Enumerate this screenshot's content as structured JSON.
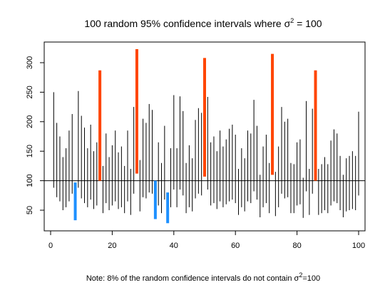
{
  "chart_data": {
    "type": "interval",
    "title": {
      "before": "100 random 95% confidence intervals where σ",
      "sup": "2",
      "after": " = 100"
    },
    "note": {
      "before": "Note: 8% of the random confidence intervals do not contain σ",
      "sup": "2",
      "after": "=100"
    },
    "xlabel": "",
    "ylabel": "",
    "xlim": [
      0,
      100
    ],
    "ylim": [
      15,
      335
    ],
    "x_ticks": [
      0,
      20,
      40,
      60,
      80,
      100
    ],
    "y_ticks": [
      50,
      100,
      150,
      200,
      250,
      300
    ],
    "reference_line": 100,
    "colors": {
      "contains": "#000000",
      "above": "#ff4500",
      "below": "#1e90ff"
    },
    "intervals": [
      {
        "x": 1,
        "low": 88,
        "high": 250
      },
      {
        "x": 2,
        "low": 72,
        "high": 198
      },
      {
        "x": 3,
        "low": 65,
        "high": 175
      },
      {
        "x": 4,
        "low": 50,
        "high": 140
      },
      {
        "x": 5,
        "low": 55,
        "high": 155
      },
      {
        "x": 6,
        "low": 65,
        "high": 185
      },
      {
        "x": 7,
        "low": 78,
        "high": 213
      },
      {
        "x": 8,
        "low": 33,
        "high": 97
      },
      {
        "x": 9,
        "low": 88,
        "high": 252
      },
      {
        "x": 10,
        "low": 70,
        "high": 210
      },
      {
        "x": 11,
        "low": 62,
        "high": 190
      },
      {
        "x": 12,
        "low": 55,
        "high": 155
      },
      {
        "x": 13,
        "low": 68,
        "high": 195
      },
      {
        "x": 14,
        "low": 52,
        "high": 150
      },
      {
        "x": 15,
        "low": 58,
        "high": 165
      },
      {
        "x": 16,
        "low": 100,
        "high": 287
      },
      {
        "x": 17,
        "low": 45,
        "high": 125
      },
      {
        "x": 18,
        "low": 62,
        "high": 180
      },
      {
        "x": 19,
        "low": 50,
        "high": 140
      },
      {
        "x": 20,
        "low": 58,
        "high": 160
      },
      {
        "x": 21,
        "low": 65,
        "high": 185
      },
      {
        "x": 22,
        "low": 52,
        "high": 148
      },
      {
        "x": 23,
        "low": 55,
        "high": 158
      },
      {
        "x": 24,
        "low": 45,
        "high": 125
      },
      {
        "x": 25,
        "low": 65,
        "high": 185
      },
      {
        "x": 26,
        "low": 42,
        "high": 120
      },
      {
        "x": 27,
        "low": 78,
        "high": 225
      },
      {
        "x": 28,
        "low": 112,
        "high": 323
      },
      {
        "x": 29,
        "low": 48,
        "high": 135
      },
      {
        "x": 30,
        "low": 72,
        "high": 205
      },
      {
        "x": 31,
        "low": 70,
        "high": 198
      },
      {
        "x": 32,
        "low": 80,
        "high": 230
      },
      {
        "x": 33,
        "low": 78,
        "high": 220
      },
      {
        "x": 34,
        "low": 35,
        "high": 100
      },
      {
        "x": 35,
        "low": 58,
        "high": 165
      },
      {
        "x": 36,
        "low": 45,
        "high": 130
      },
      {
        "x": 37,
        "low": 68,
        "high": 193
      },
      {
        "x": 38,
        "low": 28,
        "high": 80
      },
      {
        "x": 39,
        "low": 55,
        "high": 155
      },
      {
        "x": 40,
        "low": 85,
        "high": 245
      },
      {
        "x": 41,
        "low": 55,
        "high": 155
      },
      {
        "x": 42,
        "low": 85,
        "high": 243
      },
      {
        "x": 43,
        "low": 75,
        "high": 218
      },
      {
        "x": 44,
        "low": 45,
        "high": 130
      },
      {
        "x": 45,
        "low": 55,
        "high": 160
      },
      {
        "x": 46,
        "low": 48,
        "high": 138
      },
      {
        "x": 47,
        "low": 70,
        "high": 203
      },
      {
        "x": 48,
        "low": 78,
        "high": 223
      },
      {
        "x": 49,
        "low": 75,
        "high": 215
      },
      {
        "x": 50,
        "low": 107,
        "high": 308
      },
      {
        "x": 51,
        "low": 85,
        "high": 242
      },
      {
        "x": 52,
        "low": 58,
        "high": 165
      },
      {
        "x": 53,
        "low": 62,
        "high": 175
      },
      {
        "x": 54,
        "low": 52,
        "high": 150
      },
      {
        "x": 55,
        "low": 65,
        "high": 185
      },
      {
        "x": 56,
        "low": 55,
        "high": 158
      },
      {
        "x": 57,
        "low": 60,
        "high": 170
      },
      {
        "x": 58,
        "low": 65,
        "high": 188
      },
      {
        "x": 59,
        "low": 68,
        "high": 195
      },
      {
        "x": 60,
        "low": 62,
        "high": 178
      },
      {
        "x": 61,
        "low": 42,
        "high": 120
      },
      {
        "x": 62,
        "low": 55,
        "high": 155
      },
      {
        "x": 63,
        "low": 48,
        "high": 138
      },
      {
        "x": 64,
        "low": 65,
        "high": 185
      },
      {
        "x": 65,
        "low": 62,
        "high": 180
      },
      {
        "x": 66,
        "low": 82,
        "high": 237
      },
      {
        "x": 67,
        "low": 68,
        "high": 193
      },
      {
        "x": 68,
        "low": 38,
        "high": 110
      },
      {
        "x": 69,
        "low": 55,
        "high": 158
      },
      {
        "x": 70,
        "low": 62,
        "high": 178
      },
      {
        "x": 71,
        "low": 45,
        "high": 130
      },
      {
        "x": 72,
        "low": 110,
        "high": 315
      },
      {
        "x": 73,
        "low": 40,
        "high": 115
      },
      {
        "x": 74,
        "low": 55,
        "high": 158
      },
      {
        "x": 75,
        "low": 78,
        "high": 225
      },
      {
        "x": 76,
        "low": 70,
        "high": 200
      },
      {
        "x": 77,
        "low": 72,
        "high": 205
      },
      {
        "x": 78,
        "low": 45,
        "high": 130
      },
      {
        "x": 79,
        "low": 45,
        "high": 128
      },
      {
        "x": 80,
        "low": 58,
        "high": 165
      },
      {
        "x": 81,
        "low": 60,
        "high": 170
      },
      {
        "x": 82,
        "low": 37,
        "high": 105
      },
      {
        "x": 83,
        "low": 82,
        "high": 235
      },
      {
        "x": 84,
        "low": 42,
        "high": 120
      },
      {
        "x": 85,
        "low": 78,
        "high": 222
      },
      {
        "x": 86,
        "low": 100,
        "high": 287
      },
      {
        "x": 87,
        "low": 42,
        "high": 120
      },
      {
        "x": 88,
        "low": 45,
        "high": 128
      },
      {
        "x": 89,
        "low": 50,
        "high": 140
      },
      {
        "x": 90,
        "low": 45,
        "high": 128
      },
      {
        "x": 91,
        "low": 58,
        "high": 168
      },
      {
        "x": 92,
        "low": 65,
        "high": 187
      },
      {
        "x": 93,
        "low": 62,
        "high": 180
      },
      {
        "x": 94,
        "low": 50,
        "high": 142
      },
      {
        "x": 95,
        "low": 38,
        "high": 110
      },
      {
        "x": 96,
        "low": 48,
        "high": 138
      },
      {
        "x": 97,
        "low": 50,
        "high": 142
      },
      {
        "x": 98,
        "low": 52,
        "high": 150
      },
      {
        "x": 99,
        "low": 50,
        "high": 142
      },
      {
        "x": 100,
        "low": 75,
        "high": 217
      }
    ]
  }
}
